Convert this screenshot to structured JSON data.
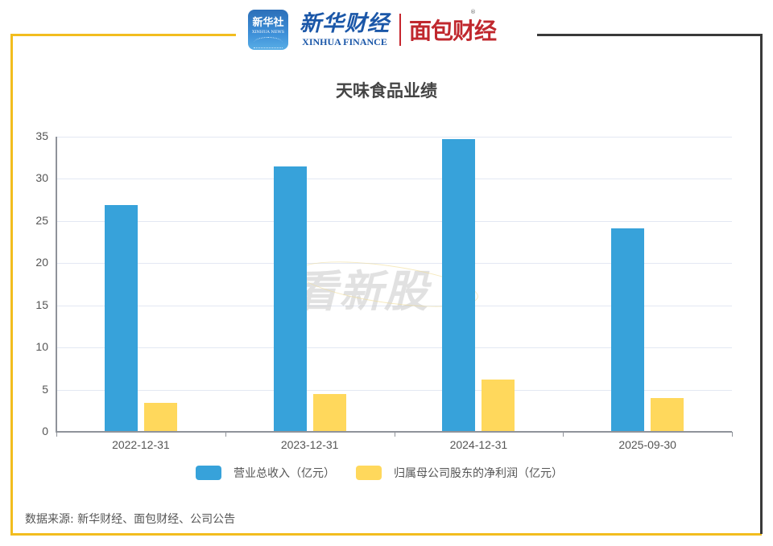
{
  "header": {
    "logo_xinhua_news_cn": "新华社",
    "logo_xinhua_news_en": "XINHUA NEWS",
    "logo_xinhua_finance_cn": "新华财经",
    "logo_xinhua_finance_en": "XINHUA FINANCE",
    "logo_mianbao_cn": "面包财经",
    "logo_mianbao_reg": "®"
  },
  "colors": {
    "revenue": "#37a2da",
    "net_profit": "#ffd85c",
    "frame_accent": "#f2bd1e",
    "frame_dark": "#3a3a3a"
  },
  "watermark": "看新股",
  "chart_data": {
    "type": "bar",
    "title": "天味食品业绩",
    "xlabel": "",
    "ylabel": "",
    "categories": [
      "2022-12-31",
      "2023-12-31",
      "2024-12-31",
      "2025-09-30"
    ],
    "series": [
      {
        "name": "营业总收入（亿元）",
        "values": [
          26.9,
          31.5,
          34.7,
          24.1
        ]
      },
      {
        "name": "归属母公司股东的净利润（亿元）",
        "values": [
          3.4,
          4.5,
          6.2,
          4.0
        ]
      }
    ],
    "ylim": [
      0,
      35
    ],
    "yticks": [
      "0",
      "5",
      "10",
      "15",
      "20",
      "25",
      "30",
      "35"
    ],
    "grid": true,
    "legend_position": "bottom"
  },
  "footer": {
    "source": "数据来源: 新华财经、面包财经、公司公告"
  }
}
